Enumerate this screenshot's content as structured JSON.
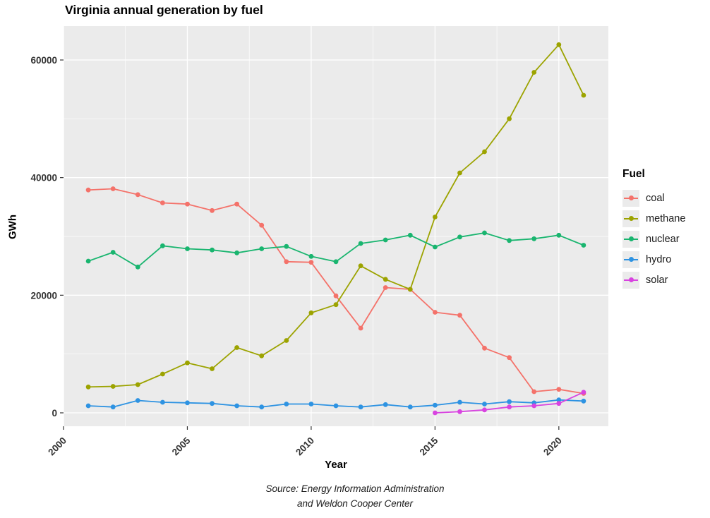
{
  "chart_data": {
    "type": "line",
    "title": "Virginia annual generation by fuel",
    "xlabel": "Year",
    "ylabel": "GWh",
    "caption_line1": "Source: Energy Information Administration",
    "caption_line2": "and Weldon Cooper Center",
    "x": [
      2001,
      2002,
      2003,
      2004,
      2005,
      2006,
      2007,
      2008,
      2009,
      2010,
      2011,
      2012,
      2013,
      2014,
      2015,
      2016,
      2017,
      2018,
      2019,
      2020,
      2021
    ],
    "series": [
      {
        "name": "coal",
        "color": "#F4726A",
        "values": [
          37900,
          38100,
          37100,
          35700,
          35500,
          34400,
          35500,
          31900,
          25700,
          25600,
          19900,
          14400,
          21300,
          21000,
          17100,
          16600,
          11000,
          9400,
          3600,
          4000,
          3300
        ]
      },
      {
        "name": "methane",
        "color": "#9CA300",
        "values": [
          4400,
          4500,
          4800,
          6600,
          8500,
          7500,
          11100,
          9700,
          12300,
          17000,
          18400,
          25000,
          22700,
          21000,
          33300,
          40800,
          44400,
          50000,
          57900,
          62600,
          54000
        ]
      },
      {
        "name": "nuclear",
        "color": "#19B56F",
        "values": [
          25800,
          27300,
          24800,
          28400,
          27900,
          27700,
          27200,
          27900,
          28300,
          26600,
          25700,
          28800,
          29400,
          30200,
          28200,
          29900,
          30600,
          29300,
          29600,
          30200,
          28500
        ]
      },
      {
        "name": "hydro",
        "color": "#2E93E2",
        "values": [
          1200,
          1000,
          2100,
          1800,
          1700,
          1600,
          1200,
          1000,
          1500,
          1500,
          1200,
          1000,
          1400,
          1000,
          1300,
          1800,
          1500,
          1900,
          1700,
          2200,
          2000
        ]
      },
      {
        "name": "solar",
        "color": "#D844E0",
        "values": [
          null,
          null,
          null,
          null,
          null,
          null,
          null,
          null,
          null,
          null,
          null,
          null,
          null,
          null,
          0,
          200,
          500,
          1000,
          1200,
          1600,
          3500
        ]
      }
    ],
    "legend": {
      "title": "Fuel",
      "entries": [
        {
          "label": "coal",
          "color": "#F4726A"
        },
        {
          "label": "methane",
          "color": "#9CA300"
        },
        {
          "label": "nuclear",
          "color": "#19B56F"
        },
        {
          "label": "hydro",
          "color": "#2E93E2"
        },
        {
          "label": "solar",
          "color": "#D844E0"
        }
      ]
    },
    "xlim": [
      2000,
      2022
    ],
    "ylim": [
      -2280,
      65760
    ],
    "x_ticks": [
      2000,
      2005,
      2010,
      2015,
      2020
    ],
    "x_minor_ticks": [
      2002.5,
      2007.5,
      2012.5,
      2017.5
    ],
    "y_ticks": [
      0,
      20000,
      40000,
      60000
    ],
    "y_minor_ticks": [
      10000,
      30000,
      50000
    ],
    "grid": "on",
    "legend_position": "right",
    "panel_bg": "#EBEBEB",
    "grid_color": "#FFFFFF",
    "tick_label_color": "#333333"
  }
}
